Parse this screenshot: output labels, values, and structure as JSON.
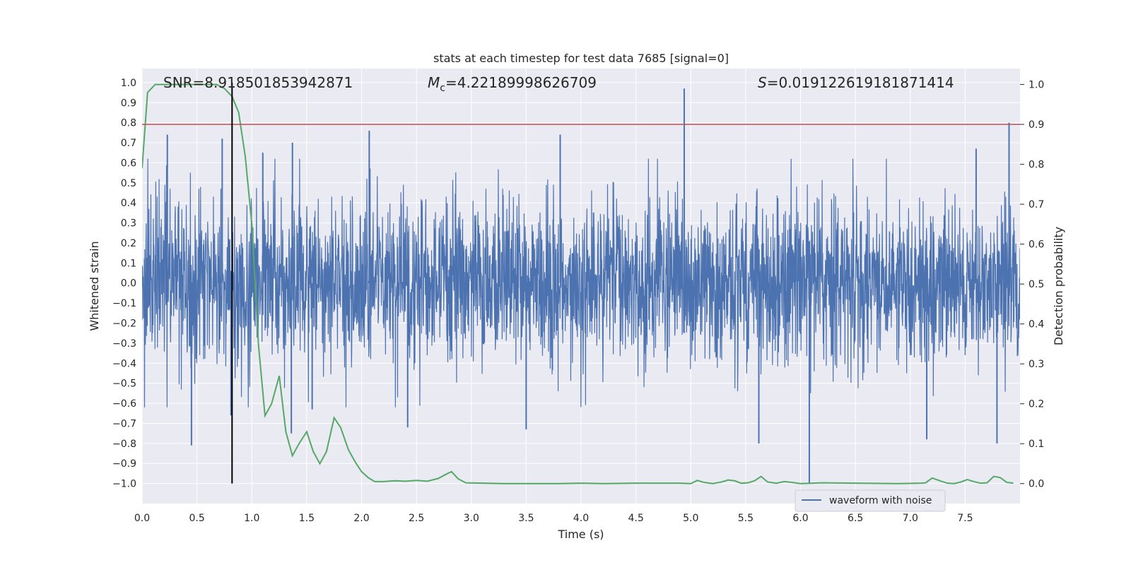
{
  "chart_data": {
    "type": "line",
    "title": "stats at each timestep for test data 7685 [signal=0]",
    "xlabel": "Time (s)",
    "ylabel": "Whitened strain",
    "y2label": "Detection probability",
    "xlim": [
      0,
      8
    ],
    "ylim": [
      -1.1,
      1.07
    ],
    "y2lim": [
      -0.05,
      1.04
    ],
    "xticks": [
      0.0,
      0.5,
      1.0,
      1.5,
      2.0,
      2.5,
      3.0,
      3.5,
      4.0,
      4.5,
      5.0,
      5.5,
      6.0,
      6.5,
      7.0,
      7.5
    ],
    "yticks": [
      1.0,
      0.9,
      0.8,
      0.7,
      0.6,
      0.5,
      0.4,
      0.3,
      0.2,
      0.1,
      0.0,
      -0.1,
      -0.2,
      -0.3,
      -0.4,
      -0.5,
      -0.6,
      -0.7,
      -0.8,
      -0.9,
      -1.0
    ],
    "y2ticks": [
      1.0,
      0.9,
      0.8,
      0.7,
      0.6,
      0.5,
      0.4,
      0.3,
      0.2,
      0.1,
      0.0
    ],
    "grid": true,
    "legend_position": "lower-right",
    "annotations": {
      "snr_text": "SNR=8.918501853942871",
      "mc_symbol": "M",
      "mc_subscript": "c",
      "mc_value": "=4.22189998626709",
      "s_symbol": "S",
      "s_value": "=0.019122619181871414"
    },
    "waveform": {
      "name": "waveform with noise",
      "color": "#4c72b0",
      "typical_amplitude": 0.27,
      "spikes": [
        {
          "x": 0.45,
          "y": -0.81
        },
        {
          "x": 0.23,
          "y": 0.74
        },
        {
          "x": 0.73,
          "y": 0.72
        },
        {
          "x": 0.81,
          "y": -0.66
        },
        {
          "x": 1.1,
          "y": 0.65
        },
        {
          "x": 1.37,
          "y": 0.7
        },
        {
          "x": 1.36,
          "y": -0.75
        },
        {
          "x": 1.55,
          "y": -0.63
        },
        {
          "x": 2.07,
          "y": 0.76
        },
        {
          "x": 2.42,
          "y": -0.72
        },
        {
          "x": 3.5,
          "y": -0.73
        },
        {
          "x": 3.81,
          "y": 0.74
        },
        {
          "x": 4.94,
          "y": 0.97
        },
        {
          "x": 5.62,
          "y": -0.8
        },
        {
          "x": 6.08,
          "y": -1.0
        },
        {
          "x": 7.15,
          "y": -0.78
        },
        {
          "x": 7.6,
          "y": 0.67
        },
        {
          "x": 7.79,
          "y": -0.8
        },
        {
          "x": 7.9,
          "y": 0.8
        }
      ]
    },
    "detection_probability": {
      "color": "#55a868",
      "x": [
        0.0,
        0.05,
        0.12,
        0.2,
        0.3,
        0.4,
        0.5,
        0.6,
        0.68,
        0.75,
        0.82,
        0.88,
        0.94,
        1.0,
        1.06,
        1.12,
        1.18,
        1.25,
        1.31,
        1.37,
        1.43,
        1.5,
        1.56,
        1.62,
        1.68,
        1.75,
        1.81,
        1.88,
        1.94,
        2.0,
        2.06,
        2.12,
        2.2,
        2.3,
        2.4,
        2.5,
        2.6,
        2.7,
        2.76,
        2.82,
        2.88,
        2.95,
        3.1,
        3.3,
        3.6,
        3.8,
        4.0,
        4.2,
        4.5,
        4.9,
        5.0,
        5.06,
        5.12,
        5.2,
        5.28,
        5.34,
        5.4,
        5.46,
        5.52,
        5.58,
        5.64,
        5.7,
        5.78,
        5.85,
        5.92,
        6.0,
        6.2,
        6.5,
        6.9,
        7.1,
        7.14,
        7.2,
        7.28,
        7.34,
        7.4,
        7.46,
        7.52,
        7.58,
        7.64,
        7.7,
        7.76,
        7.82,
        7.88,
        7.94
      ],
      "y": [
        0.79,
        0.98,
        1.0,
        1.0,
        1.0,
        1.0,
        1.0,
        1.0,
        1.0,
        0.99,
        0.97,
        0.93,
        0.82,
        0.65,
        0.35,
        0.17,
        0.2,
        0.27,
        0.13,
        0.07,
        0.1,
        0.13,
        0.08,
        0.05,
        0.08,
        0.165,
        0.14,
        0.085,
        0.055,
        0.03,
        0.015,
        0.005,
        0.005,
        0.007,
        0.006,
        0.008,
        0.006,
        0.013,
        0.022,
        0.03,
        0.012,
        0.002,
        0.001,
        0.0,
        0.0,
        0.0,
        0.001,
        0.0,
        0.001,
        0.001,
        0.0,
        0.008,
        0.003,
        0.0,
        0.004,
        0.009,
        0.007,
        0.001,
        0.002,
        0.007,
        0.018,
        0.004,
        0.001,
        0.005,
        0.003,
        0.0,
        0.002,
        0.001,
        0.0,
        0.001,
        0.002,
        0.014,
        0.006,
        0.001,
        0.0,
        0.004,
        0.01,
        0.005,
        0.001,
        0.002,
        0.018,
        0.015,
        0.003,
        0.001
      ]
    },
    "threshold": {
      "y2": 0.9,
      "color": "#c44e52"
    },
    "vertical_marker": {
      "x": 0.82,
      "y_from": -1.0,
      "y_to": 1.0,
      "color": "#000000"
    }
  }
}
